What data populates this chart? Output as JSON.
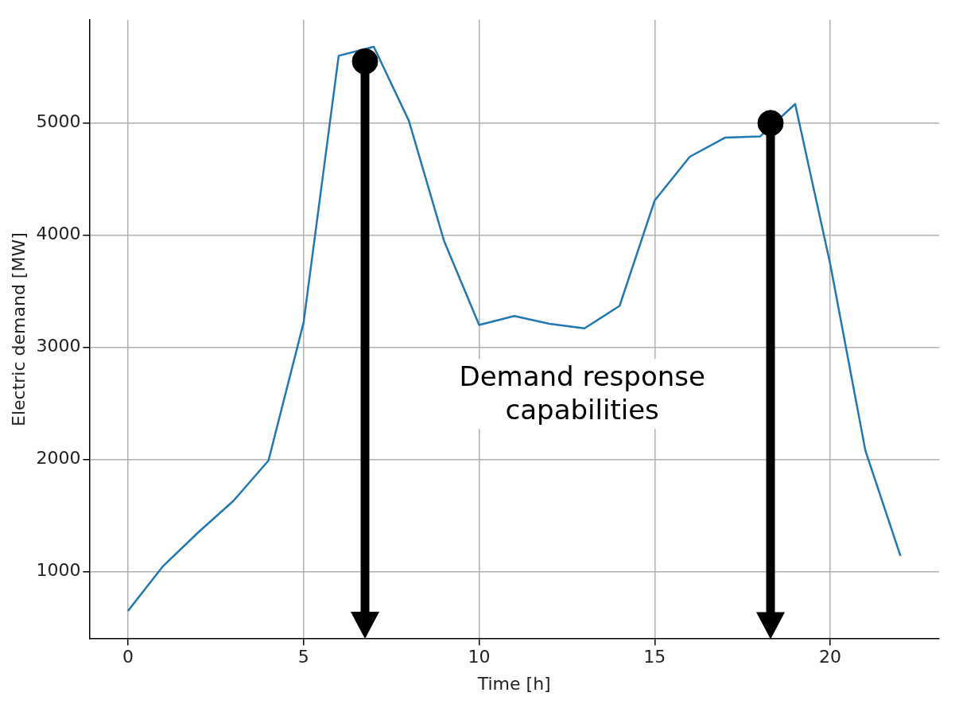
{
  "chart_data": {
    "type": "line",
    "xlabel": "Time [h]",
    "ylabel": "Electric demand [MW]",
    "x": [
      0,
      1,
      2,
      3,
      4,
      5,
      6,
      7,
      8,
      9,
      10,
      11,
      12,
      13,
      14,
      15,
      16,
      17,
      18,
      19,
      20,
      21,
      22
    ],
    "series": [
      {
        "color": "#1f77b4",
        "values": [
          650,
          1050,
          1350,
          1630,
          1990,
          3220,
          5600,
          5680,
          5020,
          3950,
          3200,
          3280,
          3210,
          3170,
          3370,
          4310,
          4700,
          4870,
          4880,
          5170,
          3740,
          2080,
          1140
        ]
      },
      {
        "type": "scatter",
        "color": "#000000",
        "marker": "circle",
        "x": [
          6.75,
          18.3
        ],
        "values": [
          5550,
          5000
        ]
      }
    ],
    "xlim": [
      -1.1,
      23.1
    ],
    "xticks": [
      0,
      5,
      10,
      15,
      20
    ],
    "ylim": [
      400,
      5920
    ],
    "yticks": [
      1000,
      2000,
      3000,
      4000,
      5000
    ],
    "grid": true,
    "legend": false,
    "marker": "none",
    "annotations": [
      "Demand response\ncapabilities"
    ]
  }
}
